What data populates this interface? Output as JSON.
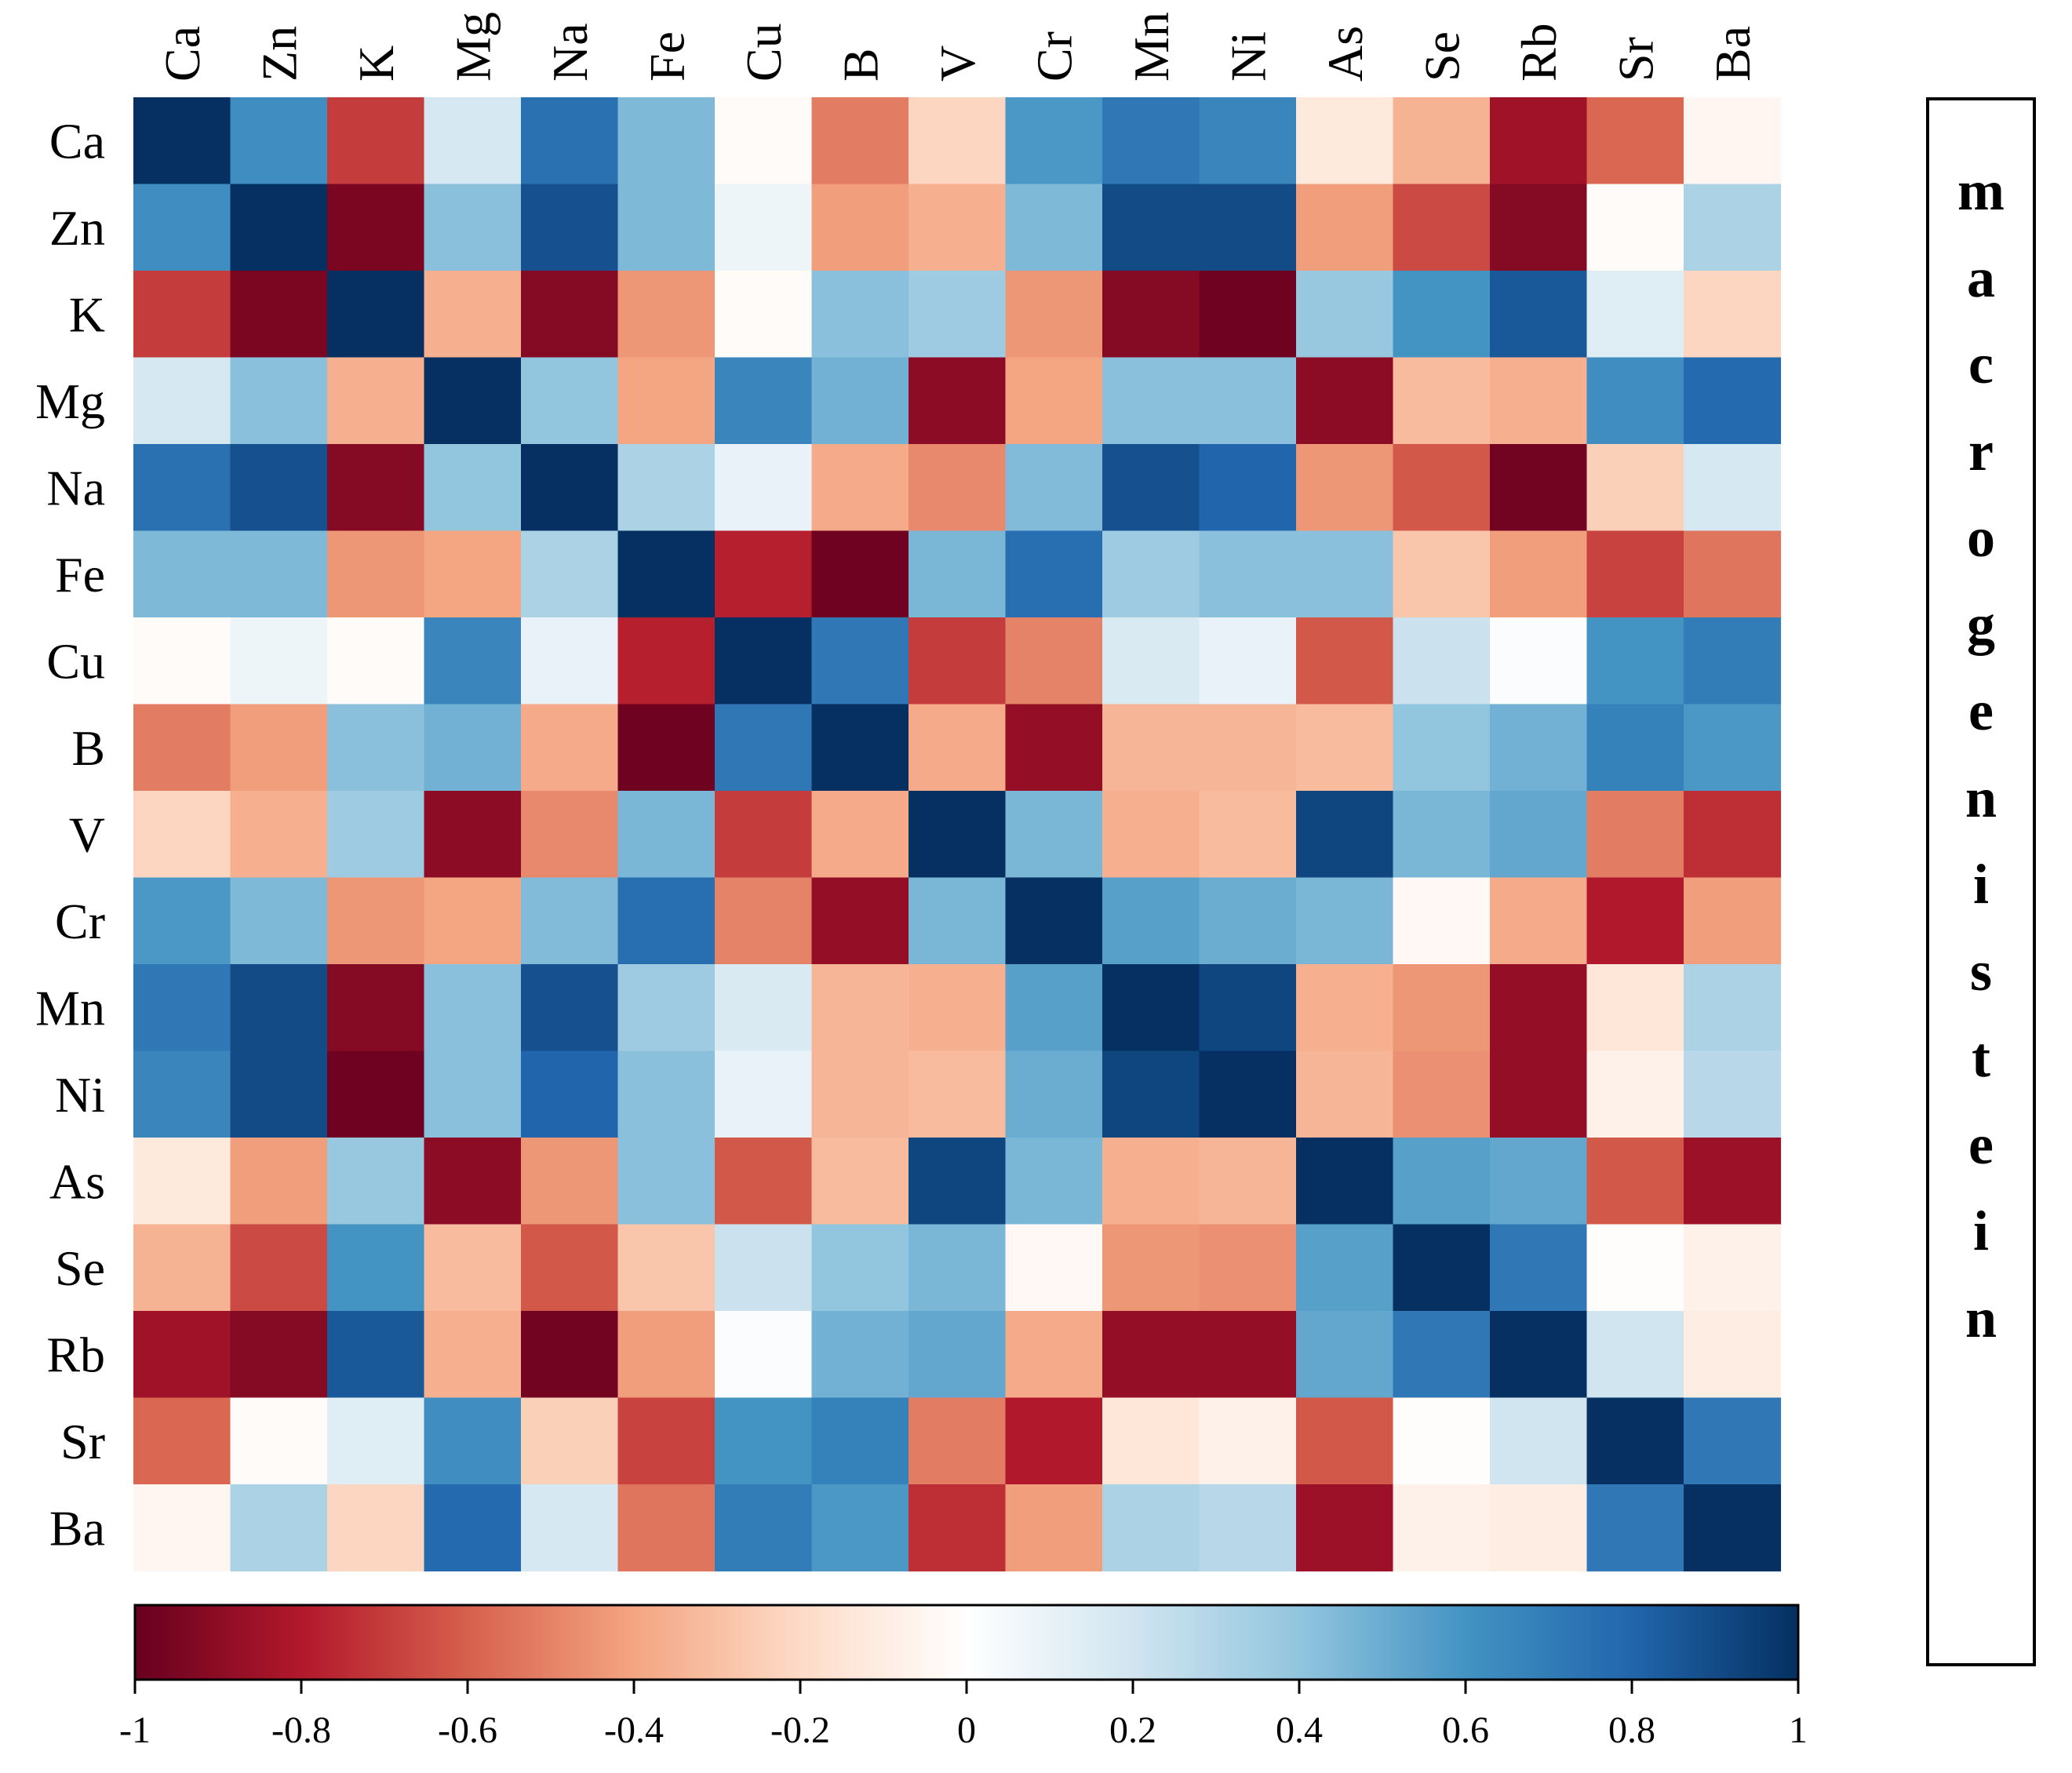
{
  "chart_data": {
    "type": "heatmap",
    "title": "macrogenistein",
    "rows": [
      "Ca",
      "Zn",
      "K",
      "Mg",
      "Na",
      "Fe",
      "Cu",
      "B",
      "V",
      "Cr",
      "Mn",
      "Ni",
      "As",
      "Se",
      "Rb",
      "Sr",
      "Ba"
    ],
    "cols": [
      "Ca",
      "Zn",
      "K",
      "Mg",
      "Na",
      "Fe",
      "Cu",
      "B",
      "V",
      "Cr",
      "Mn",
      "Ni",
      "As",
      "Se",
      "Rb",
      "Sr",
      "Ba"
    ],
    "values": [
      [
        1.0,
        0.62,
        -0.7,
        0.18,
        0.75,
        0.45,
        -0.02,
        -0.52,
        -0.22,
        0.58,
        0.72,
        0.66,
        -0.12,
        -0.35,
        -0.85,
        -0.58,
        -0.05
      ],
      [
        0.62,
        1.0,
        -0.95,
        0.42,
        0.88,
        0.45,
        0.08,
        -0.42,
        -0.36,
        0.45,
        0.9,
        0.9,
        -0.42,
        -0.66,
        -0.92,
        -0.02,
        0.32
      ],
      [
        -0.7,
        -0.95,
        1.0,
        -0.36,
        -0.92,
        -0.44,
        -0.02,
        0.42,
        0.36,
        -0.44,
        -0.92,
        -0.98,
        0.38,
        0.6,
        0.85,
        0.14,
        -0.22
      ],
      [
        0.18,
        0.42,
        -0.36,
        1.0,
        0.4,
        -0.4,
        0.66,
        0.48,
        -0.9,
        -0.4,
        0.42,
        0.42,
        -0.9,
        -0.32,
        -0.36,
        0.62,
        0.78
      ],
      [
        0.75,
        0.88,
        -0.92,
        0.4,
        1.0,
        0.32,
        0.1,
        -0.38,
        -0.48,
        0.44,
        0.88,
        0.8,
        -0.44,
        -0.62,
        -0.97,
        -0.24,
        0.18
      ],
      [
        0.45,
        0.45,
        -0.44,
        -0.4,
        0.32,
        1.0,
        -0.78,
        -0.98,
        0.46,
        0.76,
        0.36,
        0.42,
        0.42,
        -0.28,
        -0.42,
        -0.68,
        -0.54
      ],
      [
        -0.02,
        0.08,
        -0.02,
        0.66,
        0.1,
        -0.78,
        1.0,
        0.72,
        -0.7,
        -0.5,
        0.16,
        0.1,
        -0.62,
        0.22,
        0.02,
        0.6,
        0.7
      ],
      [
        -0.52,
        -0.42,
        0.42,
        0.48,
        -0.38,
        -0.98,
        0.72,
        1.0,
        -0.38,
        -0.88,
        -0.34,
        -0.34,
        -0.32,
        0.4,
        0.48,
        0.68,
        0.58
      ],
      [
        -0.22,
        -0.36,
        0.36,
        -0.9,
        -0.48,
        0.46,
        -0.7,
        -0.38,
        1.0,
        0.46,
        -0.36,
        -0.32,
        0.92,
        0.46,
        0.52,
        -0.52,
        -0.74
      ],
      [
        0.58,
        0.45,
        -0.44,
        -0.4,
        0.44,
        0.76,
        -0.5,
        -0.88,
        0.46,
        1.0,
        0.55,
        0.5,
        0.46,
        -0.04,
        -0.38,
        -0.8,
        -0.42
      ],
      [
        0.72,
        0.9,
        -0.92,
        0.42,
        0.88,
        0.36,
        0.16,
        -0.34,
        -0.36,
        0.55,
        1.0,
        0.92,
        -0.36,
        -0.44,
        -0.88,
        -0.14,
        0.32
      ],
      [
        0.66,
        0.9,
        -0.98,
        0.42,
        0.8,
        0.42,
        0.1,
        -0.34,
        -0.32,
        0.5,
        0.92,
        1.0,
        -0.34,
        -0.46,
        -0.88,
        -0.08,
        0.28
      ],
      [
        -0.12,
        -0.42,
        0.38,
        -0.9,
        -0.44,
        0.42,
        -0.62,
        -0.32,
        0.92,
        0.46,
        -0.36,
        -0.34,
        1.0,
        0.55,
        0.52,
        -0.62,
        -0.86
      ],
      [
        -0.35,
        -0.66,
        0.6,
        -0.32,
        -0.62,
        -0.28,
        0.22,
        0.4,
        0.46,
        -0.04,
        -0.44,
        -0.46,
        0.55,
        1.0,
        0.72,
        -0.01,
        -0.08
      ],
      [
        -0.85,
        -0.92,
        0.85,
        -0.36,
        -0.97,
        -0.42,
        0.02,
        0.48,
        0.52,
        -0.38,
        -0.88,
        -0.88,
        0.52,
        0.72,
        1.0,
        0.2,
        -0.1
      ],
      [
        -0.58,
        -0.02,
        0.14,
        0.62,
        -0.24,
        -0.68,
        0.6,
        0.68,
        -0.52,
        -0.8,
        -0.14,
        -0.08,
        -0.62,
        -0.01,
        0.2,
        1.0,
        0.72
      ],
      [
        -0.05,
        0.32,
        -0.22,
        0.78,
        0.18,
        -0.54,
        0.7,
        0.58,
        -0.74,
        -0.42,
        0.32,
        0.28,
        -0.86,
        -0.08,
        -0.1,
        0.72,
        1.0
      ]
    ],
    "colorbar": {
      "min": -1,
      "max": 1,
      "ticks": [
        "-1",
        "-0.8",
        "-0.6",
        "-0.4",
        "-0.2",
        "0",
        "0.2",
        "0.4",
        "0.6",
        "0.8",
        "1"
      ],
      "colormap": [
        "#67001f",
        "#b2182b",
        "#d6604d",
        "#f4a582",
        "#fddbc7",
        "#ffffff",
        "#d1e5f0",
        "#92c5de",
        "#4393c3",
        "#2166ac",
        "#053061"
      ]
    },
    "xlabel": "",
    "ylabel": "",
    "grid": false,
    "legend": "right"
  }
}
